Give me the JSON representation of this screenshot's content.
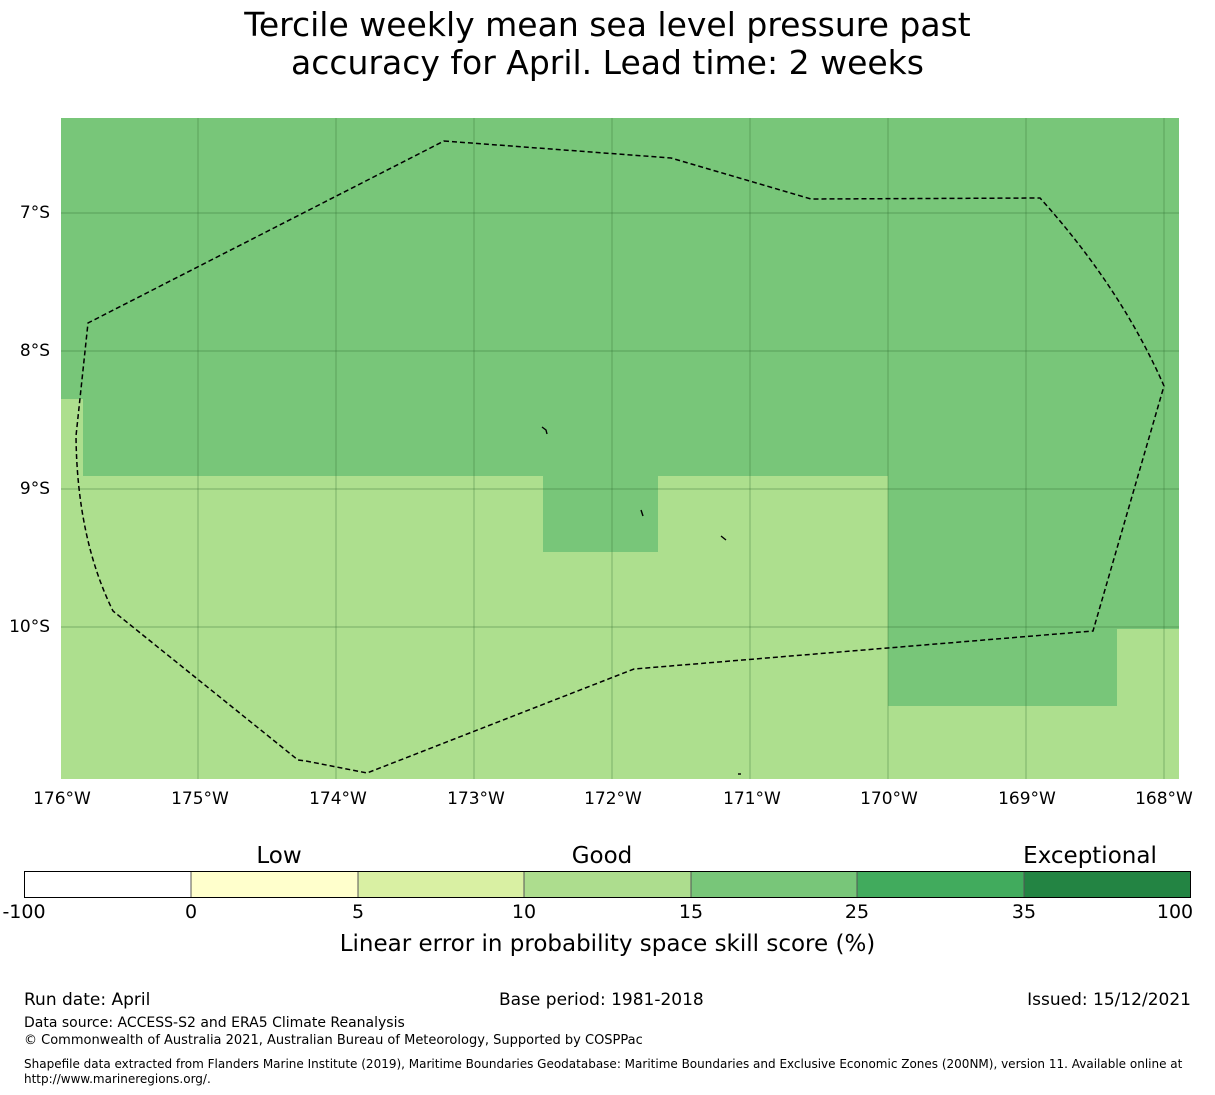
{
  "title_line1": "Tercile weekly mean sea level pressure past",
  "title_line2": "accuracy for April. Lead time: 2 weeks",
  "map": {
    "lon_range": [
      -176,
      -167.9
    ],
    "lat_range": [
      -11.15,
      -6.3
    ],
    "lat_labels": [
      "7°S",
      "8°S",
      "9°S",
      "10°S"
    ],
    "lon_labels": [
      "176°W",
      "175°W",
      "174°W",
      "173°W",
      "172°W",
      "171°W",
      "170°W",
      "169°W",
      "168°W"
    ],
    "colors": {
      "class_10_15": "#addf8e",
      "class_15_25": "#78c679",
      "boundary": "#000000"
    },
    "skill_regions": [
      {
        "class": "15-25",
        "description": "north"
      },
      {
        "class": "10-15",
        "description": "south"
      }
    ]
  },
  "colorbar": {
    "categories": [
      "Low",
      "Good",
      "Exceptional"
    ],
    "ticks": [
      "-100",
      "0",
      "5",
      "10",
      "15",
      "25",
      "35",
      "100"
    ],
    "colors": [
      "#ffffff",
      "#ffffcc",
      "#d9f0a3",
      "#addd8e",
      "#78c679",
      "#41ab5d",
      "#238443"
    ],
    "label": "Linear error in probability space skill score (%)"
  },
  "footer": {
    "run_date": "Run date: April",
    "base_period": "Base period: 1981-2018",
    "issued": "Issued: 15/12/2021",
    "data_source": "Data source: ACCESS-S2 and ERA5 Climate Reanalysis",
    "copyright": "© Commonwealth of Australia 2021, Australian Bureau of Meteorology, Supported by COSPPac",
    "shapefile": "Shapefile data extracted from Flanders Marine Institute (2019), Maritime Boundaries Geodatabase: Maritime Boundaries and Exclusive Economic Zones (200NM), version 11. Available online at http://www.marineregions.org/."
  }
}
